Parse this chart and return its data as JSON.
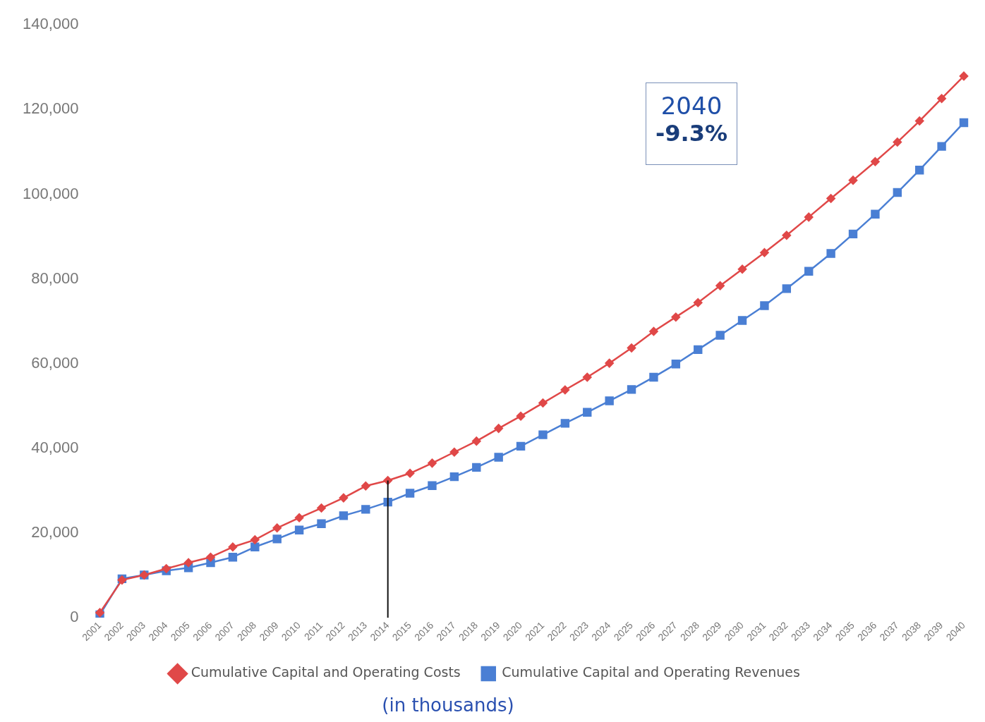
{
  "chart_data": {
    "type": "line",
    "categories": [
      "2001",
      "2002",
      "2003",
      "2004",
      "2005",
      "2006",
      "2007",
      "2008",
      "2009",
      "2010",
      "2011",
      "2012",
      "2013",
      "2014",
      "2015",
      "2016",
      "2017",
      "2018",
      "2019",
      "2020",
      "2021",
      "2022",
      "2023",
      "2024",
      "2025",
      "2026",
      "2027",
      "2028",
      "2029",
      "2030",
      "2031",
      "2032",
      "2033",
      "2034",
      "2035",
      "2036",
      "2037",
      "2038",
      "2039",
      "2040"
    ],
    "series": [
      {
        "name": "Cumulative Capital and Operating Revenues",
        "color": "#4a7fd4",
        "marker": "square",
        "values": [
          700,
          9200,
          10100,
          11100,
          11800,
          13000,
          14300,
          16700,
          18600,
          20700,
          22200,
          24100,
          25600,
          27300,
          29400,
          31200,
          33300,
          35500,
          37900,
          40500,
          43200,
          45900,
          48500,
          51200,
          53900,
          56800,
          59900,
          63300,
          66700,
          70200,
          73700,
          77700,
          81800,
          86000,
          90600,
          95300,
          100400,
          105700,
          111300,
          116900
        ]
      },
      {
        "name": "Cumulative Capital and Operating Costs",
        "color": "#e04848",
        "marker": "diamond",
        "values": [
          1200,
          8900,
          10100,
          11600,
          13000,
          14300,
          16700,
          18400,
          21200,
          23600,
          25900,
          28300,
          31100,
          32400,
          34100,
          36500,
          39100,
          41700,
          44700,
          47600,
          50700,
          53800,
          56800,
          60100,
          63700,
          67600,
          71000,
          74400,
          78400,
          82300,
          86200,
          90300,
          94600,
          99000,
          103300,
          107700,
          112300,
          117300,
          122600,
          127900
        ]
      }
    ],
    "ylim": [
      0,
      140000
    ],
    "yticks": [
      0,
      {
        "value": 20000,
        "label": "20,000"
      },
      {
        "value": 40000,
        "label": "40,000"
      },
      {
        "value": 60000,
        "label": "60,000"
      },
      {
        "value": 80000,
        "label": "80,000"
      },
      {
        "value": 100000,
        "label": "100,000"
      },
      {
        "value": 120000,
        "label": "120,000"
      },
      {
        "value": 140000,
        "label": "140,000"
      }
    ],
    "grid": false,
    "legend": "bottom",
    "ref_lines": [
      {
        "axis": "x",
        "value": "2014",
        "color": "#111111"
      }
    ],
    "annotations": [
      "2040",
      "-9.3%",
      "(in thousands)"
    ]
  }
}
